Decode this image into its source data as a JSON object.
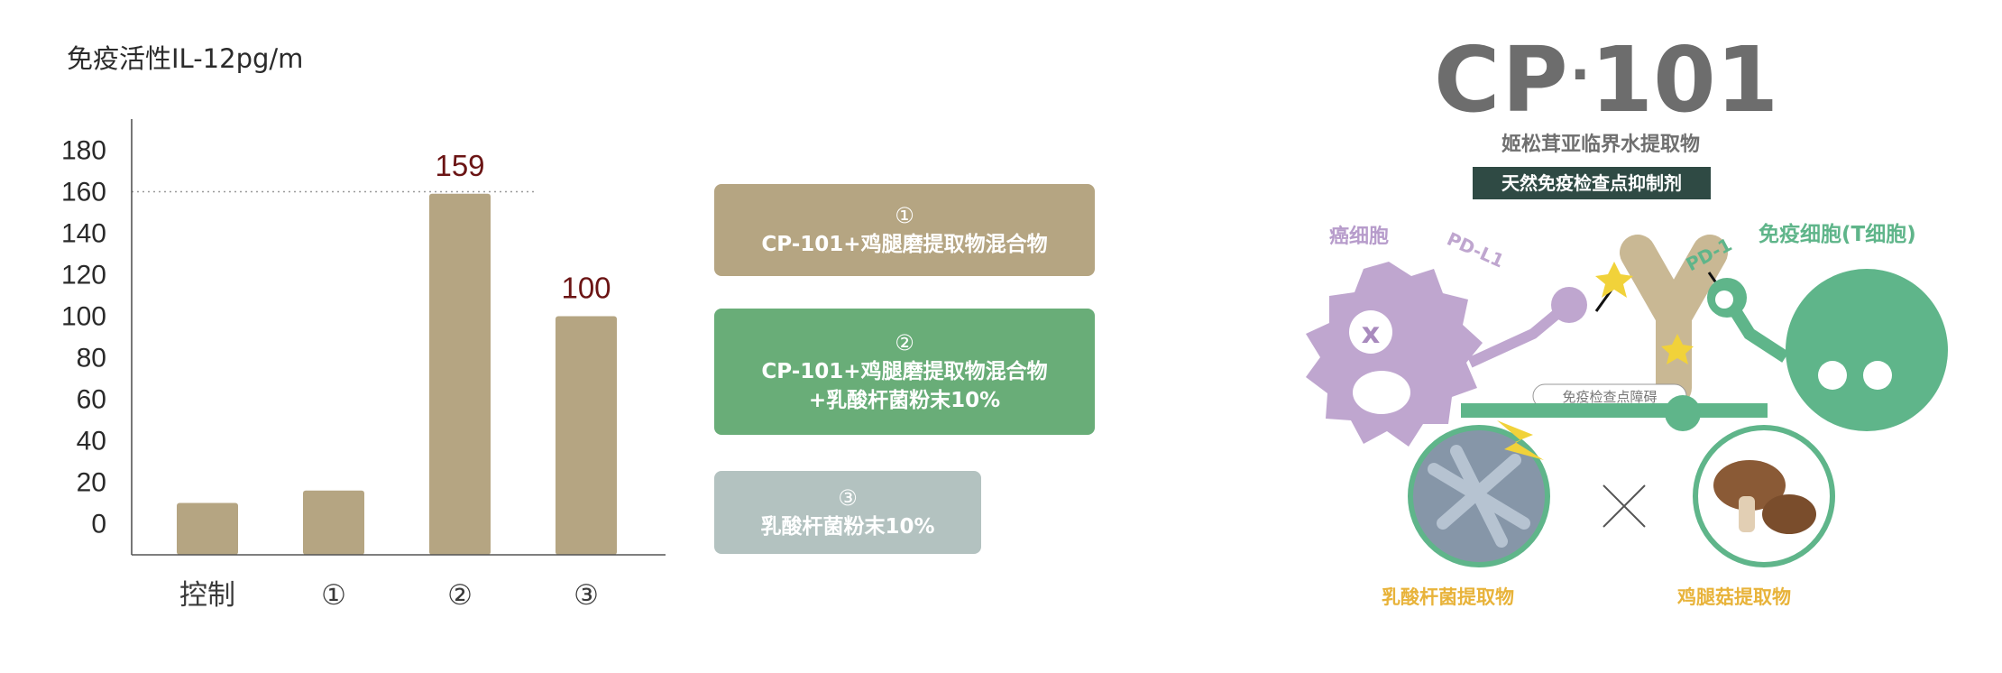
{
  "chart_data": {
    "type": "bar",
    "title": "免疫活性IL-12pg/m",
    "categories": [
      "控制",
      "①",
      "②",
      "③"
    ],
    "values": [
      10,
      16,
      159,
      100
    ],
    "data_labels": [
      "",
      "",
      "159",
      "100"
    ],
    "y_ticks": [
      0,
      20,
      40,
      60,
      80,
      100,
      120,
      140,
      160,
      180
    ],
    "ylim": [
      -15,
      195
    ],
    "reference_line": 160,
    "bar_color": "#b5a582",
    "label_color": "#6b1414"
  },
  "legend": [
    {
      "num": "①",
      "line1": "CP-101+鸡腿磨提取物混合物",
      "line2": "",
      "color": "#b5a582"
    },
    {
      "num": "②",
      "line1": "CP-101+鸡腿磨提取物混合物",
      "line2": "+乳酸杆菌粉末10%",
      "color": "#69ad78"
    },
    {
      "num": "③",
      "line1": "乳酸杆菌粉末10%",
      "line2": "",
      "color": "#b3c2c0"
    }
  ],
  "illustration": {
    "brand_cp": "CP",
    "brand_dot": "·",
    "brand_num": "101",
    "subtitle": "姬松茸亚临界水提取物",
    "badge": "天然免疫检查点抑制剂",
    "cancer_cell": "癌细胞",
    "pd_l1": "PD-L1",
    "pd_1": "PD-1",
    "t_cell": "免疫细胞(T细胞)",
    "checkpoint": "免疫检查点障碍",
    "lacto": "乳酸杆菌提取物",
    "mushroom": "鸡腿菇提取物",
    "colors": {
      "brand": "#6d6d6d",
      "cancer": "#bfa6cf",
      "tcell": "#5fb58a",
      "antibody": "#c9b894",
      "badge": "#2f4a44",
      "gold": "#e8b33a"
    }
  }
}
